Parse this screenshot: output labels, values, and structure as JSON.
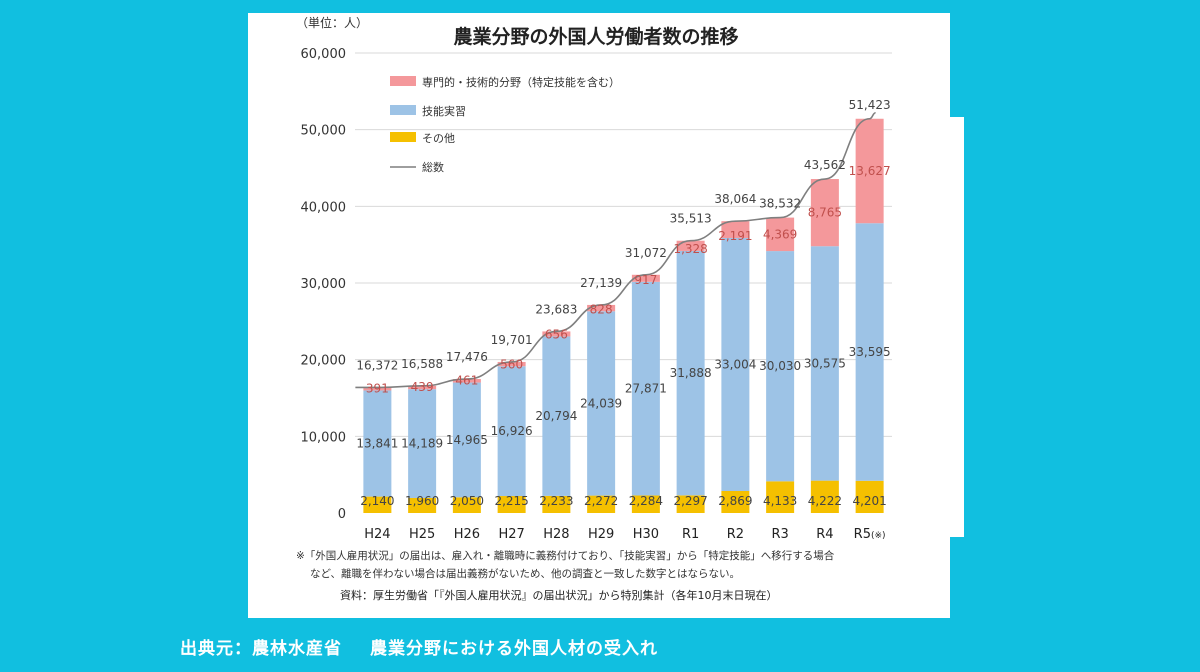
{
  "source_caption": {
    "label": "出典元：",
    "publisher": "農林水産省",
    "document": "農業分野における外国人材の受入れ"
  },
  "chart_data": {
    "type": "bar",
    "stacked": true,
    "title": "農業分野の外国人労働者数の推移",
    "unit_label": "（単位：人）",
    "ylim": [
      0,
      60000
    ],
    "yticks": [
      0,
      10000,
      20000,
      30000,
      40000,
      50000,
      60000
    ],
    "ytick_labels": [
      "0",
      "10,000",
      "20,000",
      "30,000",
      "40,000",
      "50,000",
      "60,000"
    ],
    "grid": true,
    "categories": [
      "H24",
      "H25",
      "H26",
      "H27",
      "H28",
      "H29",
      "H30",
      "R1",
      "R2",
      "R3",
      "R4",
      "R5"
    ],
    "category_suffix_last": "(※)",
    "series": [
      {
        "name": "その他",
        "color": "#f5c000",
        "values": [
          2140,
          1960,
          2050,
          2215,
          2233,
          2272,
          2284,
          2297,
          2869,
          4133,
          4222,
          4201
        ],
        "labels": [
          "2,140",
          "1,960",
          "2,050",
          "2,215",
          "2,233",
          "2,272",
          "2,284",
          "2,297",
          "2,869",
          "4,133",
          "4,222",
          "4,201"
        ]
      },
      {
        "name": "技能実習",
        "color": "#9dc3e6",
        "values": [
          13841,
          14189,
          14965,
          16926,
          20794,
          24039,
          27871,
          31888,
          33004,
          30030,
          30575,
          33595
        ],
        "labels": [
          "13,841",
          "14,189",
          "14,965",
          "16,926",
          "20,794",
          "24,039",
          "27,871",
          "31,888",
          "33,004",
          "30,030",
          "30,575",
          "33,595"
        ]
      },
      {
        "name": "専門的・技術的分野（特定技能を含む）",
        "color": "#f4989b",
        "values": [
          391,
          439,
          461,
          560,
          656,
          828,
          917,
          1328,
          2191,
          4369,
          8765,
          13627
        ],
        "labels": [
          "391",
          "439",
          "461",
          "560",
          "656",
          "828",
          "917",
          "1,328",
          "2,191",
          "4,369",
          "8,765",
          "13,627"
        ]
      }
    ],
    "total": {
      "name": "総数",
      "color": "#7f7f7f",
      "values": [
        16372,
        16588,
        17476,
        19701,
        23683,
        27139,
        31072,
        35513,
        38064,
        38532,
        43562,
        51423
      ],
      "labels": [
        "16,372",
        "16,588",
        "17,476",
        "19,701",
        "23,683",
        "27,139",
        "31,072",
        "35,513",
        "38,064",
        "38,532",
        "43,562",
        "51,423"
      ]
    },
    "legend_order": [
      "専門的・技術的分野（特定技能を含む）",
      "技能実習",
      "その他",
      "総数"
    ],
    "legend_position": "top-left",
    "footnote_lines": [
      "※「外国人雇用状況」の届出は、雇入れ・離職時に義務付けており、「技能実習」から「特定技能」へ移行する場合",
      "など、離職を伴わない場合は届出義務がないため、他の調査と一致した数字とはならない。"
    ],
    "source_note": "資料：厚生労働省「『外国人雇用状況』の届出状況」から特別集計（各年10月末日現在）"
  }
}
